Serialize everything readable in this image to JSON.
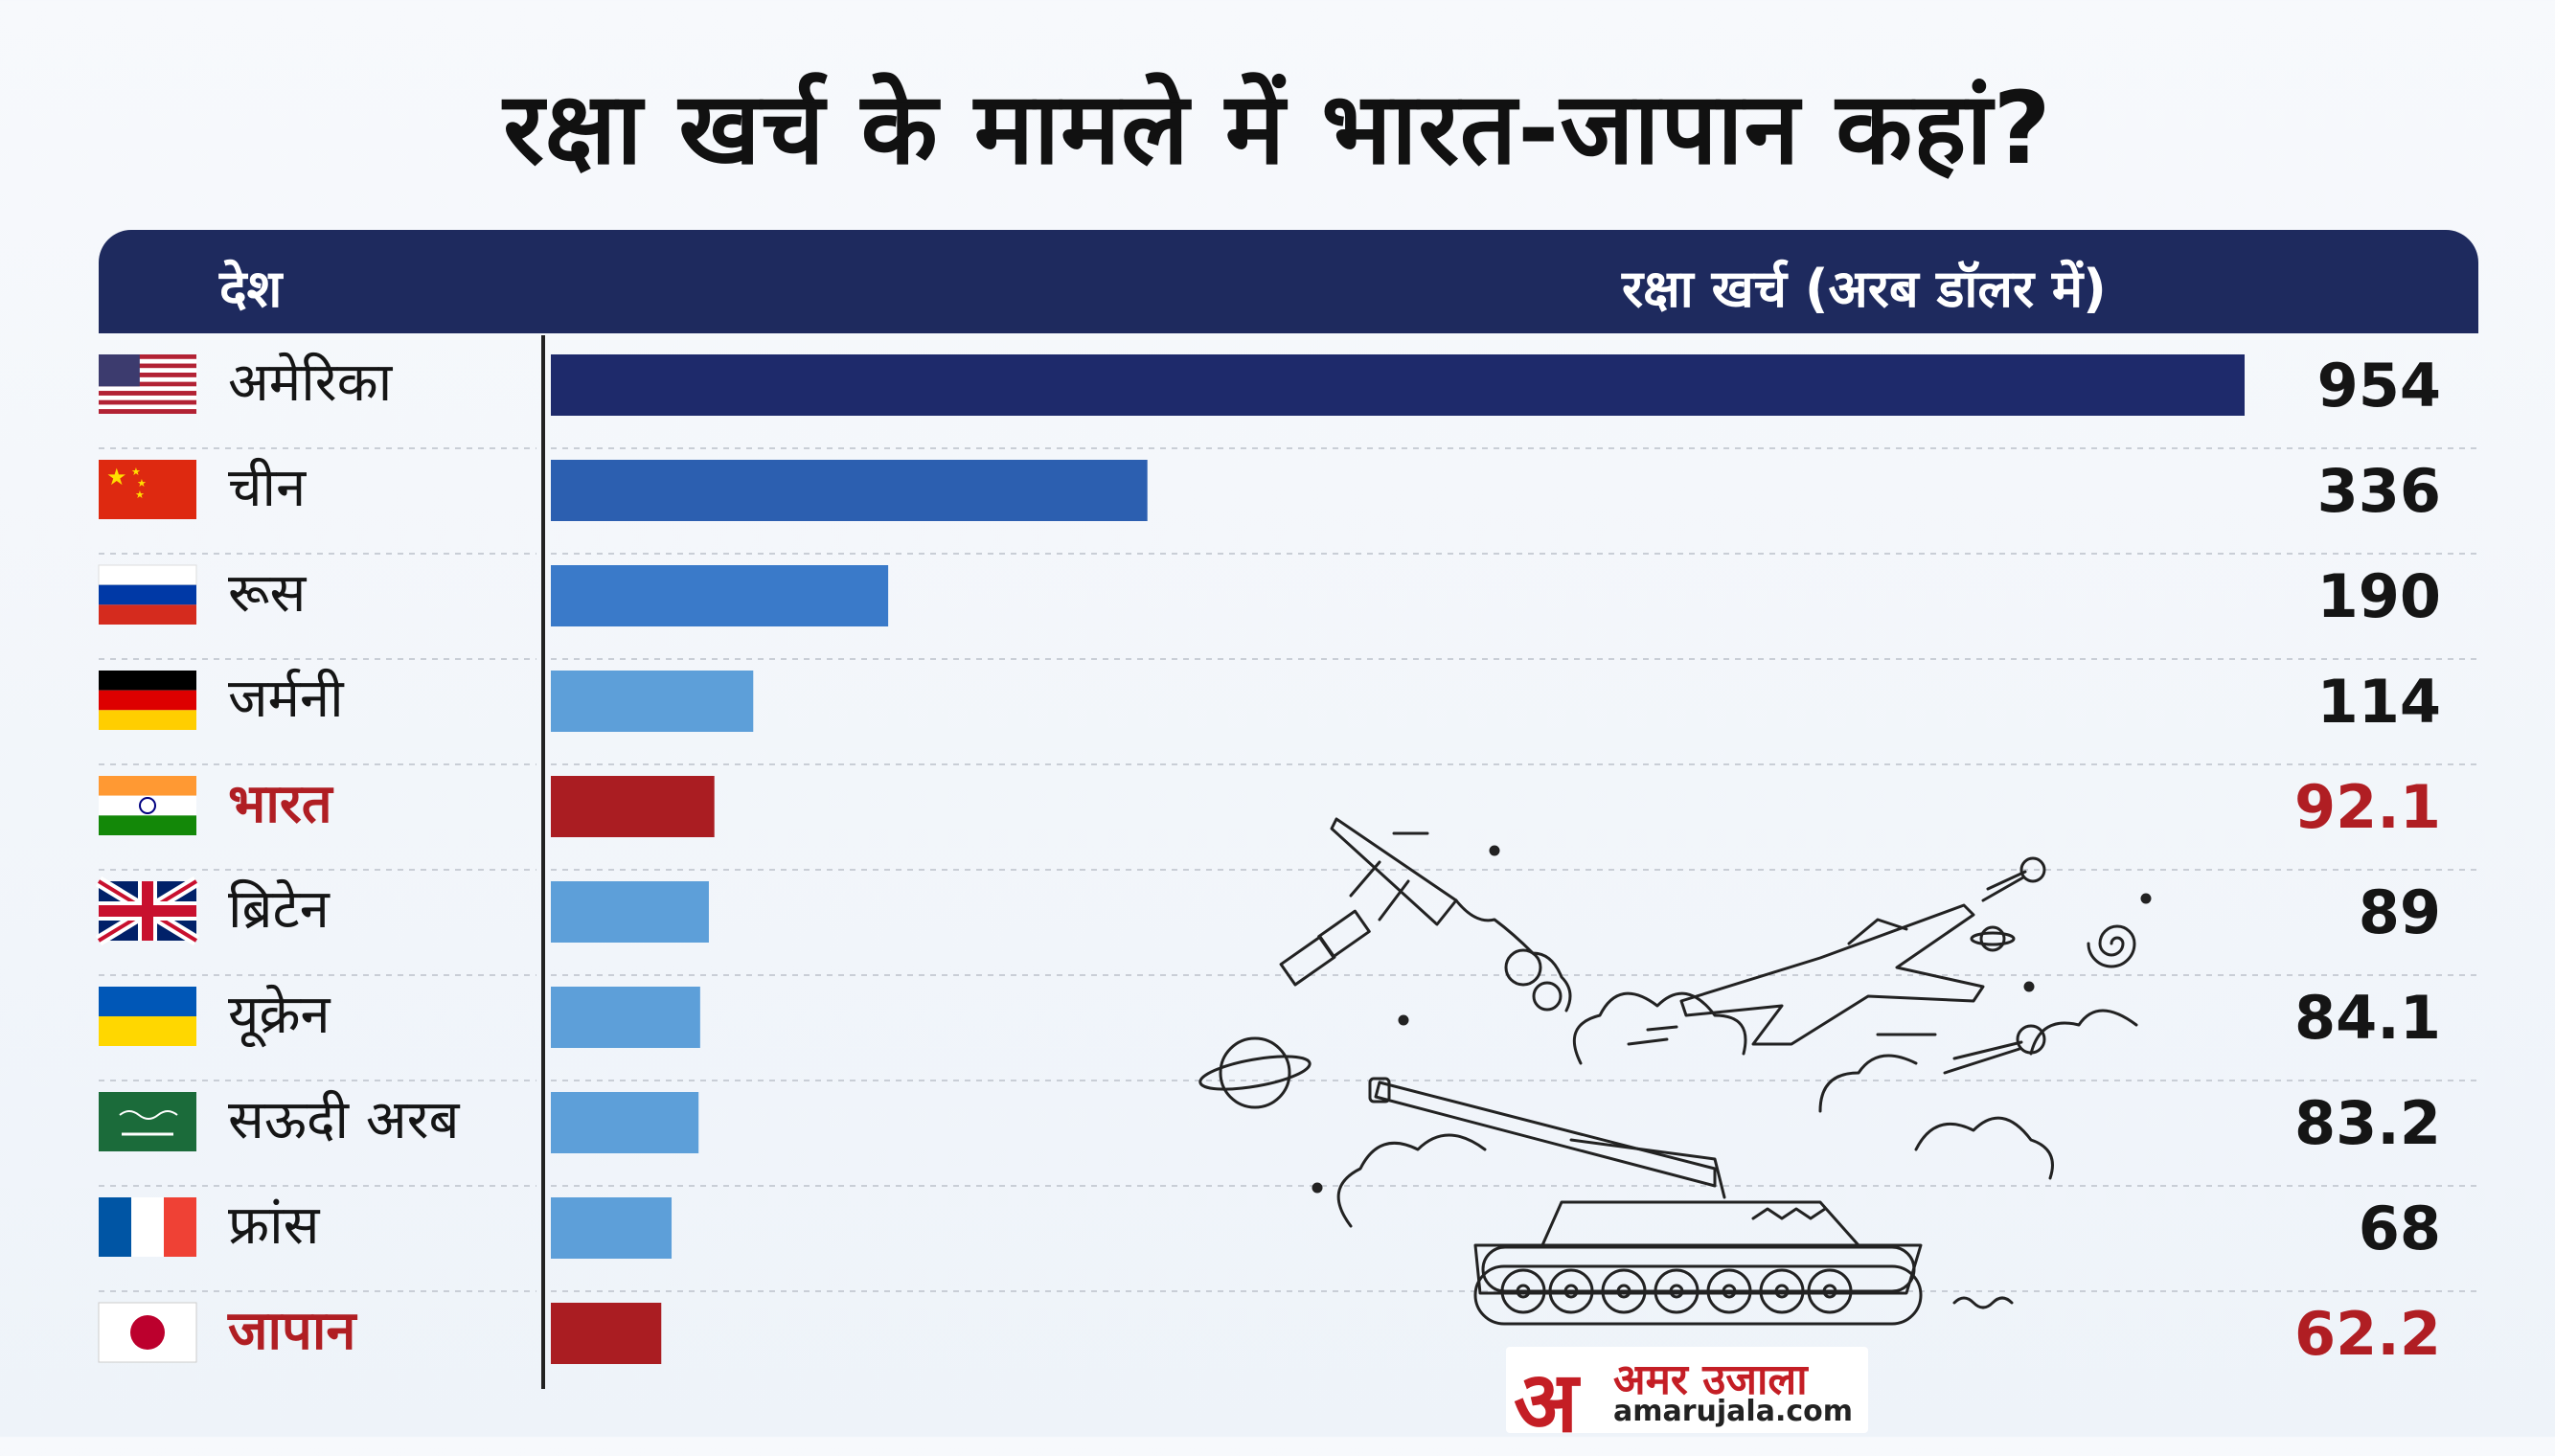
{
  "chart_data": {
    "type": "bar",
    "orientation": "horizontal",
    "title": "रक्षा खर्च के मामले में भारत-जापान कहां?",
    "column_headers": {
      "country": "देश",
      "value": "रक्षा खर्च (अरब डॉलर में)"
    },
    "categories": [
      "अमेरिका",
      "चीन",
      "रूस",
      "जर्मनी",
      "भारत",
      "ब्रिटेन",
      "यूक्रेन",
      "सऊदी अरब",
      "फ्रांस",
      "जापान"
    ],
    "values": [
      954,
      336,
      190,
      114,
      92.1,
      89,
      84.1,
      83.2,
      68,
      62.2
    ],
    "value_labels": [
      "954",
      "336",
      "190",
      "114",
      "92.1",
      "89",
      "84.1",
      "83.2",
      "68",
      "62.2"
    ],
    "highlighted": [
      false,
      false,
      false,
      false,
      true,
      false,
      false,
      false,
      false,
      true
    ],
    "flags": [
      "us-flag",
      "china-flag",
      "russia-flag",
      "germany-flag",
      "india-flag",
      "uk-flag",
      "ukraine-flag",
      "saudi-flag",
      "france-flag",
      "japan-flag"
    ],
    "bar_colors": [
      "#1e2a6b",
      "#2c5fb0",
      "#3a7ac9",
      "#5d9fd9",
      "#aa1d22",
      "#5d9fd9",
      "#5d9fd9",
      "#5d9fd9",
      "#5d9fd9",
      "#aa1d22"
    ],
    "xlim": [
      0,
      954
    ],
    "grid": false
  },
  "colors": {
    "header_bg": "#1e2a5e",
    "highlight": "#b01e23",
    "logo_red": "#c41e25"
  },
  "decoration": "military-sketch-icon",
  "logo": {
    "mark": "अ",
    "name": "अमर उजाला",
    "url": "amarujala.com"
  }
}
